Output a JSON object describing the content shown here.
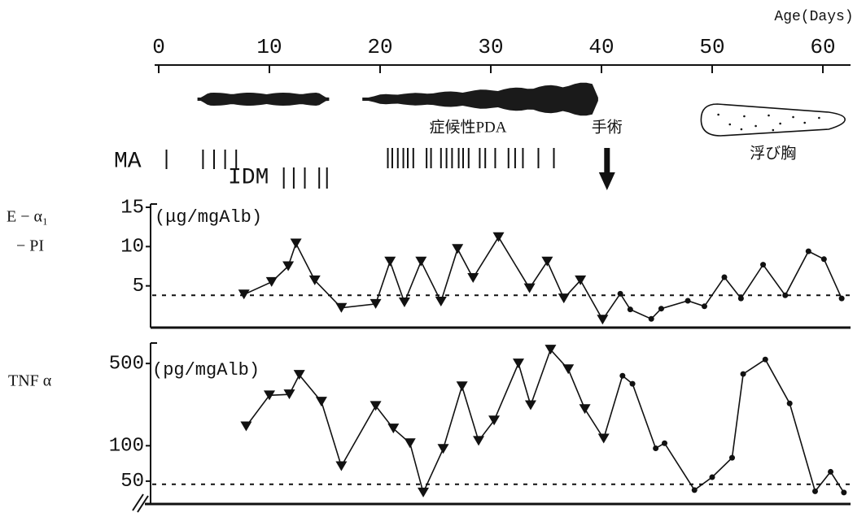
{
  "chart_data": [
    {
      "type": "timeline",
      "xlabel": "Age(Days)",
      "xlim": [
        0,
        62.5
      ],
      "xticks": [
        0,
        10,
        20,
        30,
        40,
        50,
        60
      ],
      "pda_label": "症候性PDA",
      "pda_spans": [
        [
          3.5,
          15.4
        ],
        [
          18.4,
          39.7
        ]
      ],
      "surgery_label": "手術",
      "surgery_day": 40.5,
      "effusion_label": "浮び胸",
      "effusion_span": [
        49,
        62
      ],
      "ma_label": "MA",
      "ma_days": [
        0.7,
        4,
        5,
        6,
        7
      ],
      "idm_label": "IDM",
      "idm_days": [
        11.3,
        12.2,
        13.2,
        14.5,
        15.2
      ],
      "tick_days": [
        20.7,
        21.1,
        21.6,
        22.1,
        22.5,
        23,
        24.2,
        24.6,
        25.5,
        26,
        26.5,
        27.1,
        27.5,
        28,
        29,
        29.5,
        30.4,
        31.6,
        32.2,
        32.9,
        34.3,
        35.7
      ]
    },
    {
      "type": "line",
      "ylabel": [
        "E − α₁",
        "− PI"
      ],
      "unit": "(μg/mgAlb)",
      "color": "#111",
      "xlim": [
        0,
        62.5
      ],
      "ylim": [
        0,
        15
      ],
      "yticks": [
        5,
        10,
        15
      ],
      "reference": 3.8,
      "x": [
        7.7,
        10.2,
        11.7,
        12.4,
        14.1,
        16.5,
        19.6,
        20.9,
        22.2,
        23.7,
        25.5,
        27,
        28.4,
        30.7,
        33.5,
        35.1,
        36.6,
        38.1,
        40.1,
        41.7,
        42.6,
        44.5,
        45.4,
        47.8,
        49.3,
        51.1,
        52.6,
        54.6,
        56.6,
        58.7,
        60.1,
        61.7
      ],
      "values": [
        3.9,
        5.5,
        7.5,
        10.4,
        5.7,
        2.2,
        2.7,
        8.1,
        2.9,
        8.1,
        3.0,
        9.7,
        6.0,
        11.2,
        4.7,
        8.1,
        3.4,
        5.7,
        0.7,
        4.0,
        2.0,
        0.8,
        2.1,
        3.1,
        2.4,
        6.1,
        3.4,
        7.7,
        3.8,
        9.4,
        8.4,
        3.4
      ]
    },
    {
      "type": "line",
      "ylabel": [
        "TNF α"
      ],
      "unit": "(pg/mgAlb)",
      "color": "#111",
      "log": true,
      "xlim": [
        0,
        62.5
      ],
      "ylim": [
        33,
        700
      ],
      "yticks": [
        50,
        100,
        500
      ],
      "reference": 47,
      "x": [
        7.9,
        10,
        11.8,
        12.7,
        14.7,
        16.5,
        19.6,
        21.2,
        22.7,
        23.9,
        25.7,
        27.4,
        28.9,
        30.3,
        32.5,
        33.6,
        35.4,
        37,
        38.5,
        40.2,
        41.9,
        42.8,
        44.9,
        45.7,
        48.4,
        50,
        51.8,
        52.8,
        54.8,
        57,
        59.3,
        60.7,
        61.9
      ],
      "values": [
        146,
        268,
        273,
        400,
        237,
        67,
        218,
        140,
        105,
        40,
        94,
        320,
        110,
        164,
        500,
        221,
        656,
        447,
        205,
        115,
        393,
        336,
        95,
        105,
        42,
        54,
        79,
        407,
        541,
        229,
        41,
        60,
        40
      ]
    }
  ]
}
